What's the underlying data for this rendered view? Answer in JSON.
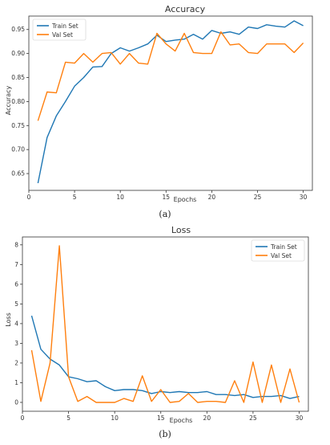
{
  "captions": [
    "(a)",
    "(b)"
  ],
  "chart_data": [
    {
      "type": "line",
      "title": "Accuracy",
      "xlabel": "Epochs",
      "ylabel": "Accuracy",
      "xlim": [
        0,
        31
      ],
      "ylim": [
        0.615,
        0.978
      ],
      "xticks": [
        0,
        5,
        10,
        15,
        20,
        25,
        30
      ],
      "yticks": [
        0.65,
        0.7,
        0.75,
        0.8,
        0.85,
        0.9,
        0.95
      ],
      "ytick_labels": [
        "0.65",
        "0.70",
        "0.75",
        "0.80",
        "0.85",
        "0.90",
        "0.95"
      ],
      "legend_position": "top-left",
      "x": [
        1,
        2,
        3,
        4,
        5,
        6,
        7,
        8,
        9,
        10,
        11,
        12,
        13,
        14,
        15,
        16,
        17,
        18,
        19,
        20,
        21,
        22,
        23,
        24,
        25,
        26,
        27,
        28,
        29,
        30
      ],
      "series": [
        {
          "name": "Train Set",
          "color": "#1f77b4",
          "values": [
            0.63,
            0.725,
            0.77,
            0.8,
            0.832,
            0.85,
            0.872,
            0.873,
            0.9,
            0.912,
            0.905,
            0.912,
            0.92,
            0.938,
            0.925,
            0.928,
            0.93,
            0.94,
            0.93,
            0.948,
            0.942,
            0.945,
            0.94,
            0.955,
            0.952,
            0.96,
            0.957,
            0.955,
            0.968,
            0.958
          ]
        },
        {
          "name": "Val Set",
          "color": "#ff7f0e",
          "values": [
            0.76,
            0.82,
            0.818,
            0.882,
            0.88,
            0.9,
            0.882,
            0.9,
            0.902,
            0.878,
            0.9,
            0.88,
            0.878,
            0.942,
            0.92,
            0.905,
            0.942,
            0.902,
            0.9,
            0.9,
            0.945,
            0.918,
            0.92,
            0.902,
            0.9,
            0.92,
            0.92,
            0.92,
            0.902,
            0.922
          ]
        }
      ]
    },
    {
      "type": "line",
      "title": "Loss",
      "xlabel": "Epochs",
      "ylabel": "Loss",
      "xlim": [
        0,
        31
      ],
      "ylim": [
        -0.45,
        8.4
      ],
      "xticks": [
        0,
        5,
        10,
        15,
        20,
        25,
        30
      ],
      "yticks": [
        0,
        1,
        2,
        3,
        4,
        5,
        6,
        7,
        8
      ],
      "ytick_labels": [
        "0",
        "1",
        "2",
        "3",
        "4",
        "5",
        "6",
        "7",
        "8"
      ],
      "legend_position": "top-right",
      "x": [
        1,
        2,
        3,
        4,
        5,
        6,
        7,
        8,
        9,
        10,
        11,
        12,
        13,
        14,
        15,
        16,
        17,
        18,
        19,
        20,
        21,
        22,
        23,
        24,
        25,
        26,
        27,
        28,
        29,
        30
      ],
      "series": [
        {
          "name": "Train Set",
          "color": "#1f77b4",
          "values": [
            4.4,
            2.7,
            2.2,
            1.9,
            1.3,
            1.2,
            1.05,
            1.1,
            0.8,
            0.6,
            0.65,
            0.65,
            0.6,
            0.45,
            0.55,
            0.5,
            0.55,
            0.5,
            0.5,
            0.55,
            0.4,
            0.4,
            0.35,
            0.4,
            0.25,
            0.3,
            0.3,
            0.35,
            0.2,
            0.3
          ]
        },
        {
          "name": "Val Set",
          "color": "#ff7f0e",
          "values": [
            2.65,
            0.05,
            2.0,
            7.95,
            1.3,
            0.05,
            0.3,
            0.0,
            0.0,
            0.0,
            0.2,
            0.05,
            1.35,
            0.05,
            0.65,
            0.0,
            0.05,
            0.45,
            0.0,
            0.05,
            0.05,
            0.0,
            1.1,
            0.0,
            2.05,
            0.0,
            1.9,
            0.0,
            1.7,
            0.0
          ]
        }
      ]
    }
  ]
}
